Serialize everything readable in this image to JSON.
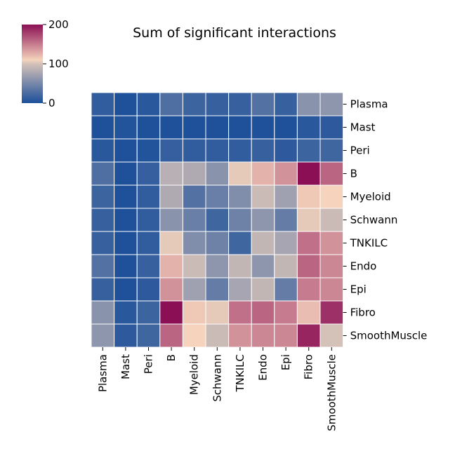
{
  "chart_data": {
    "type": "heatmap",
    "title": "Sum of significant interactions",
    "rows": [
      "Plasma",
      "Mast",
      "Peri",
      "B",
      "Myeloid",
      "Schwann",
      "TNKILC",
      "Endo",
      "Epi",
      "Fibro",
      "SmoothMuscle"
    ],
    "columns": [
      "Plasma",
      "Mast",
      "Peri",
      "B",
      "Myeloid",
      "Schwann",
      "TNKILC",
      "Endo",
      "Epi",
      "Fibro",
      "SmoothMuscle"
    ],
    "values": [
      [
        12,
        2,
        8,
        28,
        18,
        15,
        15,
        30,
        15,
        60,
        62
      ],
      [
        2,
        4,
        2,
        2,
        2,
        2,
        2,
        2,
        2,
        8,
        10
      ],
      [
        8,
        2,
        4,
        14,
        12,
        12,
        12,
        15,
        10,
        18,
        20
      ],
      [
        28,
        2,
        14,
        85,
        80,
        60,
        105,
        125,
        140,
        200,
        160
      ],
      [
        18,
        2,
        12,
        80,
        30,
        42,
        55,
        95,
        72,
        115,
        110
      ],
      [
        15,
        2,
        12,
        60,
        42,
        20,
        45,
        62,
        40,
        105,
        95
      ],
      [
        15,
        2,
        12,
        105,
        55,
        45,
        20,
        90,
        75,
        155,
        140
      ],
      [
        30,
        2,
        15,
        125,
        95,
        62,
        90,
        62,
        90,
        160,
        145
      ],
      [
        15,
        2,
        10,
        140,
        72,
        40,
        75,
        90,
        40,
        150,
        145
      ],
      [
        60,
        8,
        18,
        200,
        115,
        105,
        155,
        160,
        150,
        120,
        185
      ],
      [
        62,
        10,
        20,
        160,
        110,
        95,
        140,
        145,
        145,
        190,
        100
      ]
    ],
    "colorbar": {
      "min": 0,
      "max": 200,
      "ticks": [
        0,
        100,
        200
      ],
      "colormap": "twilight_shifted-like",
      "stops": [
        "#1b4f9a",
        "#d4c1b8",
        "#f5d3bc",
        "#8b0f55"
      ]
    }
  }
}
